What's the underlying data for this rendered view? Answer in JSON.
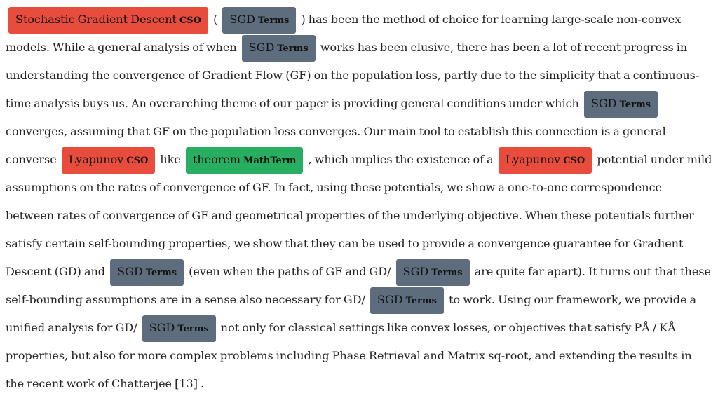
{
  "colors": {
    "cso": "#e74c3c",
    "terms": "#5d6d7e",
    "mathterm": "#27ae60",
    "text": "#222222"
  },
  "segments": [
    {
      "type": "entity",
      "text": "Stochastic Gradient Descent",
      "label": "CSO",
      "kind": "cso"
    },
    {
      "type": "text",
      "text": " ( "
    },
    {
      "type": "entity",
      "text": "SGD",
      "label": "Terms",
      "kind": "terms"
    },
    {
      "type": "text",
      "text": " ) has been the method of choice for learning large-scale non-convex models. While a general analysis of when "
    },
    {
      "type": "entity",
      "text": "SGD",
      "label": "Terms",
      "kind": "terms"
    },
    {
      "type": "text",
      "text": " works has been elusive, there has been a lot of recent progress in understanding the convergence of Gradient Flow (GF) on the population loss, partly due to the simplicity that a continuous-time analysis buys us. An overarching theme of our paper is providing general conditions under which "
    },
    {
      "type": "entity",
      "text": "SGD",
      "label": "Terms",
      "kind": "terms"
    },
    {
      "type": "text",
      "text": " converges, assuming that GF on the population loss converges. Our main tool to establish this connection is a general converse "
    },
    {
      "type": "entity",
      "text": "Lyapunov",
      "label": "CSO",
      "kind": "cso"
    },
    {
      "type": "text",
      "text": " like "
    },
    {
      "type": "entity",
      "text": "theorem",
      "label": "MathTerm",
      "kind": "mathterm"
    },
    {
      "type": "text",
      "text": " , which implies the existence of a "
    },
    {
      "type": "entity",
      "text": "Lyapunov",
      "label": "CSO",
      "kind": "cso"
    },
    {
      "type": "text",
      "text": " potential under mild assumptions on the rates of convergence of GF. In fact, using these potentials, we show a one-to-one correspondence between rates of convergence of GF and geometrical properties of the underlying objective. When these potentials further satisfy certain self-bounding properties, we show that they can be used to provide a convergence guarantee for Gradient Descent (GD) and "
    },
    {
      "type": "entity",
      "text": "SGD",
      "label": "Terms",
      "kind": "terms"
    },
    {
      "type": "text",
      "text": " (even when the paths of GF and GD/ "
    },
    {
      "type": "entity",
      "text": "SGD",
      "label": "Terms",
      "kind": "terms"
    },
    {
      "type": "text",
      "text": " are quite far apart). It turns out that these self-bounding assumptions are in a sense also necessary for GD/ "
    },
    {
      "type": "entity",
      "text": "SGD",
      "label": "Terms",
      "kind": "terms"
    },
    {
      "type": "text",
      "text": " to work. Using our framework, we provide a unified analysis for GD/ "
    },
    {
      "type": "entity",
      "text": "SGD",
      "label": "Terms",
      "kind": "terms"
    },
    {
      "type": "text",
      "text": " not only for classical settings like convex losses, or objectives that satisfy PÅ / KÅ properties, but also for more complex problems including Phase Retrieval and Matrix sq-root, and extending the results in the recent work of Chatterjee [13] ."
    }
  ]
}
